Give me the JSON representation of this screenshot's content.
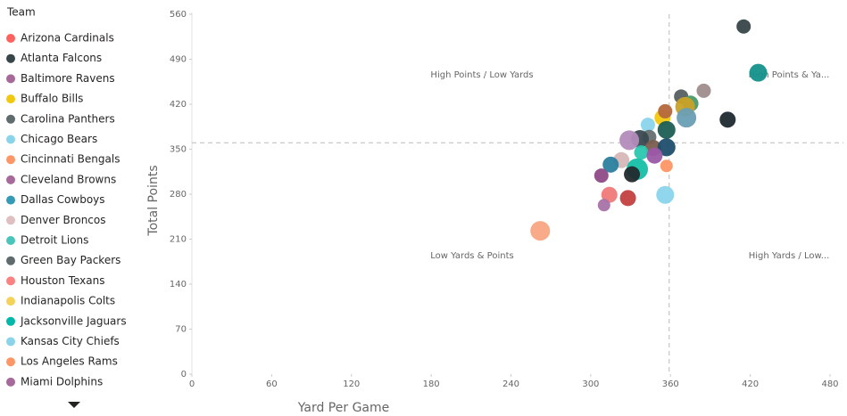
{
  "chart_data": {
    "type": "scatter",
    "x_label": "Yard Per Game",
    "y_label": "Total Points",
    "legend": {
      "title": "Team",
      "entries": [
        {
          "name": "Arizona Cardinals",
          "color": "#fd625e"
        },
        {
          "name": "Atlanta Falcons",
          "color": "#374649"
        },
        {
          "name": "Baltimore Ravens",
          "color": "#a66999"
        },
        {
          "name": "Buffalo Bills",
          "color": "#f2c80f"
        },
        {
          "name": "Carolina Panthers",
          "color": "#5f6b6d"
        },
        {
          "name": "Chicago Bears",
          "color": "#8ad4eb"
        },
        {
          "name": "Cincinnati Bengals",
          "color": "#fe9666"
        },
        {
          "name": "Cleveland Browns",
          "color": "#a66999"
        },
        {
          "name": "Dallas Cowboys",
          "color": "#3599b8"
        },
        {
          "name": "Denver Broncos",
          "color": "#dfbfbf"
        },
        {
          "name": "Detroit Lions",
          "color": "#4ac5bb"
        },
        {
          "name": "Green Bay Packers",
          "color": "#5f6b6d"
        },
        {
          "name": "Houston Texans",
          "color": "#fb8281"
        },
        {
          "name": "Indianapolis Colts",
          "color": "#f4d25a"
        },
        {
          "name": "Jacksonville Jaguars",
          "color": "#01b8aa"
        },
        {
          "name": "Kansas City Chiefs",
          "color": "#8ad4eb"
        },
        {
          "name": "Los Angeles Rams",
          "color": "#fe9666"
        },
        {
          "name": "Miami Dolphins",
          "color": "#a66999"
        }
      ]
    },
    "x": [
      415,
      426,
      403,
      385,
      368,
      375,
      371,
      372,
      354,
      356,
      343,
      357,
      344,
      337,
      329,
      347,
      357,
      338,
      348,
      323,
      357,
      315,
      335,
      308,
      331,
      356,
      314,
      328,
      310,
      262
    ],
    "y": [
      541,
      469,
      396,
      441,
      432,
      421,
      416,
      399,
      399,
      409,
      388,
      380,
      369,
      366,
      364,
      352,
      353,
      345,
      340,
      333,
      324,
      326,
      319,
      309,
      311,
      279,
      279,
      274,
      263,
      223
    ],
    "sizes": [
      8,
      10,
      9,
      8,
      8,
      9,
      11,
      11,
      9,
      8,
      8,
      10,
      8,
      10,
      11,
      9,
      10,
      8,
      9,
      9,
      7,
      9,
      12,
      8,
      9,
      10,
      9,
      9,
      7,
      11
    ],
    "colors": [
      "#374649",
      "#14918a",
      "#1d2a30",
      "#a08c8c",
      "#555f61",
      "#4a9a6a",
      "#c9a227",
      "#6a9fb5",
      "#f2c80f",
      "#b5673c",
      "#8ad4eb",
      "#1e5e55",
      "#666e70",
      "#3a4a50",
      "#b48cba",
      "#7a5e4f",
      "#1f4e6b",
      "#2ac7b0",
      "#9b59a6",
      "#d8b7b7",
      "#fe9666",
      "#2a7f9e",
      "#15bfa8",
      "#8e4a87",
      "#222a2d",
      "#8ad4eb",
      "#f07a7a",
      "#c44040",
      "#a872a8",
      "#f8a583"
    ],
    "xlim": [
      0,
      480
    ],
    "xticks": [
      0,
      60,
      120,
      180,
      240,
      300,
      360,
      420,
      480
    ],
    "ylim": [
      0,
      560
    ],
    "yticks": [
      0,
      70,
      140,
      210,
      280,
      350,
      420,
      490,
      560
    ],
    "reference_lines": {
      "x": 359,
      "y": 360
    },
    "annotations": [
      "High Points / Low Yards",
      "High Points & Ya...",
      "Low Yards & Points",
      "High Yards / Low..."
    ]
  }
}
